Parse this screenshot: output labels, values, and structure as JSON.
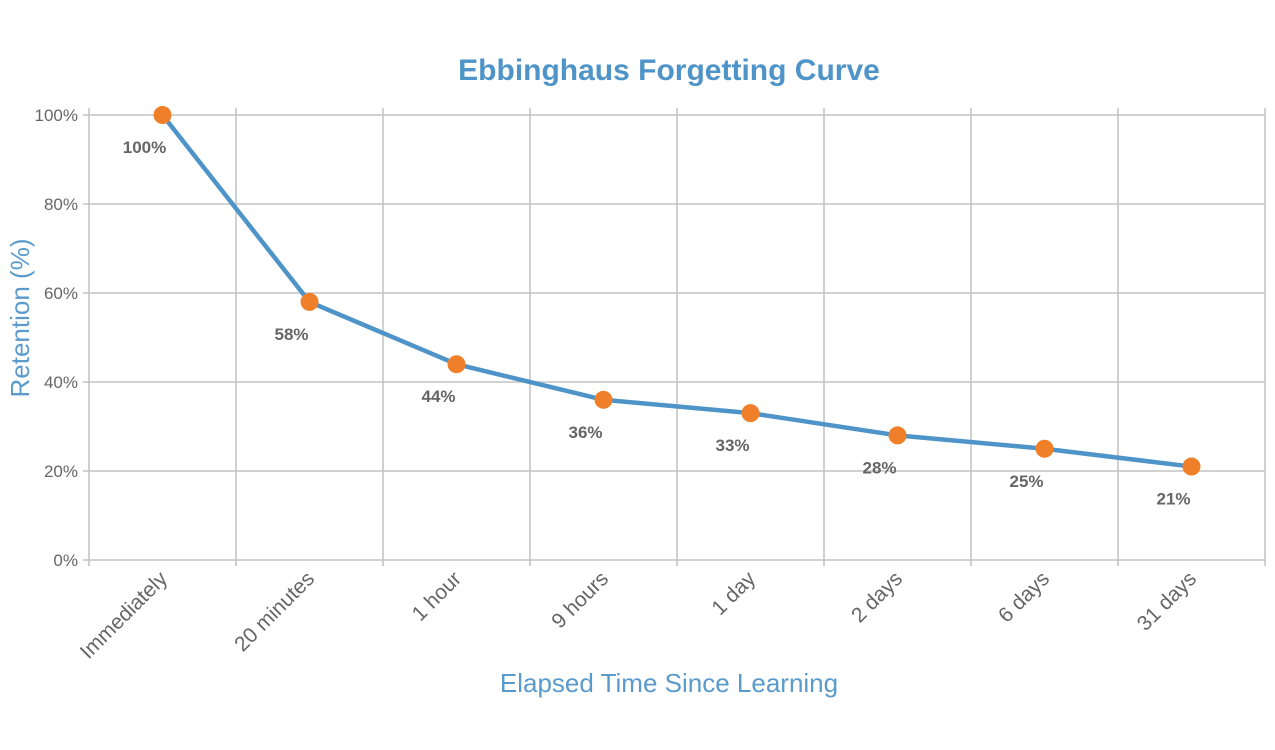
{
  "chart_data": {
    "type": "line",
    "title": "Ebbinghaus Forgetting Curve",
    "xlabel": "Elapsed Time Since Learning",
    "ylabel": "Retention (%)",
    "categories": [
      "Immediately",
      "20 minutes",
      "1 hour",
      "9 hours",
      "1 day",
      "2 days",
      "6 days",
      "31 days"
    ],
    "values": [
      100,
      58,
      44,
      36,
      33,
      28,
      25,
      21
    ],
    "data_labels": [
      "100%",
      "58%",
      "44%",
      "36%",
      "33%",
      "28%",
      "25%",
      "21%"
    ],
    "ylim": [
      0,
      100
    ],
    "yticks": [
      "0%",
      "20%",
      "40%",
      "60%",
      "80%",
      "100%"
    ],
    "grid": true,
    "legend": "none",
    "colors": {
      "line": "#4f94c8",
      "marker": "#f07f2a",
      "title": "#4f94c8",
      "grid": "#c4c4c4",
      "text": "#666666"
    }
  }
}
